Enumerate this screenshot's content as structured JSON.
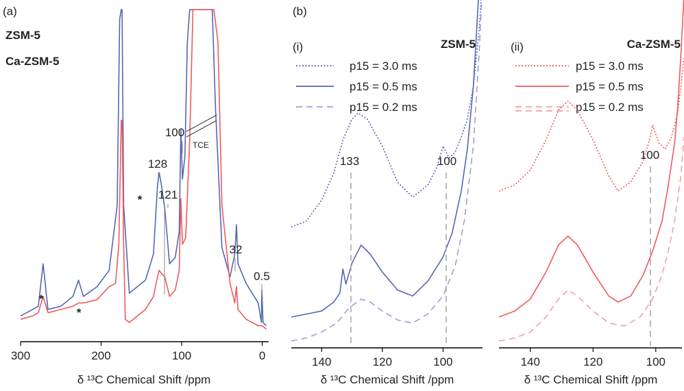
{
  "colors": {
    "zsm5": "#5565b5",
    "ca_zsm5": "#ee5a5a",
    "axis": "#000000",
    "guide": "#aaaaaa"
  },
  "chart_data": [
    {
      "type": "line",
      "panel_label": "(a)",
      "xlabel": "δ ¹³C Chemical Shift /ppm",
      "xlim": [
        300,
        -8
      ],
      "x_reversed": true,
      "xticks": [
        300,
        200,
        100,
        0
      ],
      "yticks_shown": false,
      "legend": [
        {
          "name": "ZSM-5",
          "color": "#5565b5"
        },
        {
          "name": "Ca-ZSM-5",
          "color": "#ee5a5a"
        }
      ],
      "annotations": [
        "*",
        "*",
        "*",
        "128",
        "121",
        "100",
        "TCE",
        "32",
        "0.5"
      ],
      "series": [
        {
          "name": "ZSM-5",
          "color": "#5565b5",
          "x": [
            300,
            285,
            278,
            272,
            266,
            250,
            235,
            228,
            222,
            205,
            190,
            180,
            177,
            175,
            174,
            172,
            165,
            145,
            135,
            130,
            128,
            125,
            121,
            115,
            108,
            103,
            101,
            99,
            96,
            93,
            90,
            85,
            80,
            70,
            62,
            58,
            50,
            40,
            34,
            32,
            30,
            20,
            5,
            1,
            0.5,
            -1,
            -5
          ],
          "y": [
            0.06,
            0.08,
            0.09,
            0.22,
            0.08,
            0.09,
            0.12,
            0.17,
            0.12,
            0.15,
            0.2,
            0.4,
            0.97,
            1.1,
            1.1,
            0.4,
            0.13,
            0.17,
            0.25,
            0.46,
            0.5,
            0.46,
            0.39,
            0.22,
            0.24,
            0.32,
            0.63,
            0.48,
            0.55,
            0.9,
            1.1,
            1.1,
            1.1,
            1.1,
            1.1,
            0.7,
            0.27,
            0.18,
            0.25,
            0.34,
            0.22,
            0.16,
            0.1,
            0.04,
            0.14,
            0.04,
            0.03
          ]
        },
        {
          "name": "Ca-ZSM-5",
          "color": "#ee5a5a",
          "x": [
            300,
            285,
            278,
            272,
            266,
            250,
            235,
            228,
            222,
            205,
            190,
            182,
            178,
            175,
            174,
            172,
            170,
            165,
            145,
            135,
            130,
            128,
            125,
            121,
            115,
            108,
            103,
            101,
            99,
            95,
            90,
            86,
            80,
            70,
            60,
            55,
            50,
            40,
            34,
            32,
            30,
            20,
            5,
            0,
            -5
          ],
          "y": [
            0.05,
            0.06,
            0.07,
            0.12,
            0.07,
            0.08,
            0.09,
            0.1,
            0.1,
            0.11,
            0.15,
            0.16,
            0.28,
            0.66,
            0.66,
            0.28,
            0.05,
            0.04,
            0.08,
            0.12,
            0.18,
            0.2,
            0.19,
            0.18,
            0.12,
            0.14,
            0.2,
            0.42,
            0.28,
            0.3,
            0.6,
            1.1,
            1.1,
            1.1,
            1.1,
            0.9,
            0.4,
            0.16,
            0.1,
            0.15,
            0.08,
            0.05,
            0.03,
            0.03,
            0.02
          ]
        }
      ]
    },
    {
      "type": "line",
      "panel_label": "(b)",
      "subpanel_label": "(i)",
      "sample": "ZSM-5",
      "xlabel": "δ ¹³C Chemical Shift /ppm",
      "xlim": [
        150,
        87
      ],
      "x_reversed": true,
      "xticks": [
        140,
        120,
        100
      ],
      "yticks_shown": false,
      "annotations": [
        "133",
        "100"
      ],
      "series": [
        {
          "name": "p15 = 3.0 ms",
          "color": "#5565b5",
          "style": "dotted",
          "x": [
            150,
            145,
            140,
            136,
            133,
            130,
            128,
            125,
            120,
            115,
            110,
            105,
            102,
            100,
            98,
            96,
            94,
            92,
            90,
            88,
            87
          ],
          "y": [
            0.38,
            0.4,
            0.47,
            0.56,
            0.67,
            0.74,
            0.76,
            0.74,
            0.65,
            0.53,
            0.48,
            0.52,
            0.58,
            0.65,
            0.61,
            0.63,
            0.68,
            0.74,
            0.85,
            1.05,
            1.22
          ]
        },
        {
          "name": "p15 = 0.5 ms",
          "color": "#5565b5",
          "style": "solid",
          "x": [
            150,
            145,
            140,
            136,
            134,
            133,
            132,
            130,
            127,
            124,
            120,
            115,
            110,
            105,
            100,
            97,
            94,
            92,
            90,
            88,
            87
          ],
          "y": [
            0.08,
            0.09,
            0.1,
            0.13,
            0.16,
            0.24,
            0.19,
            0.26,
            0.32,
            0.29,
            0.23,
            0.17,
            0.15,
            0.2,
            0.28,
            0.36,
            0.5,
            0.64,
            0.85,
            1.2,
            1.45
          ]
        },
        {
          "name": "p15 = 0.2 ms",
          "color": "#9aa0d8",
          "style": "dashed",
          "x": [
            150,
            145,
            140,
            135,
            131,
            127,
            124,
            120,
            115,
            110,
            105,
            100,
            96,
            93,
            90,
            88,
            87
          ],
          "y": [
            0.0,
            0.01,
            0.03,
            0.06,
            0.11,
            0.14,
            0.13,
            0.1,
            0.07,
            0.06,
            0.09,
            0.15,
            0.25,
            0.4,
            0.65,
            0.98,
            1.2
          ]
        }
      ]
    },
    {
      "type": "line",
      "subpanel_label": "(ii)",
      "sample": "Ca-ZSM-5",
      "xlabel": "δ ¹³C Chemical Shift /ppm",
      "xlim": [
        150,
        91
      ],
      "x_reversed": true,
      "xticks": [
        140,
        120,
        100
      ],
      "yticks_shown": false,
      "annotations": [
        "100"
      ],
      "series": [
        {
          "name": "p15 = 3.0 ms",
          "color": "#ee5a5a",
          "style": "dotted",
          "x": [
            150,
            145,
            140,
            135,
            131,
            128,
            125,
            120,
            115,
            112,
            108,
            104,
            102,
            101,
            99,
            97,
            95,
            93,
            92,
            91
          ],
          "y": [
            0.5,
            0.52,
            0.57,
            0.67,
            0.77,
            0.8,
            0.77,
            0.67,
            0.55,
            0.5,
            0.53,
            0.6,
            0.67,
            0.72,
            0.66,
            0.64,
            0.68,
            0.76,
            0.85,
            0.95
          ]
        },
        {
          "name": "p15 = 0.5 ms",
          "color": "#ee5a5a",
          "style": "solid",
          "x": [
            150,
            145,
            140,
            135,
            131,
            128,
            125,
            120,
            115,
            112,
            108,
            104,
            101,
            98,
            96,
            94,
            93,
            92,
            91
          ],
          "y": [
            0.08,
            0.1,
            0.14,
            0.23,
            0.32,
            0.35,
            0.32,
            0.23,
            0.15,
            0.13,
            0.15,
            0.22,
            0.3,
            0.4,
            0.52,
            0.66,
            0.78,
            0.95,
            1.15
          ]
        },
        {
          "name": "p15 = 0.2 ms",
          "color": "#f2a0a0",
          "style": "dashed",
          "x": [
            150,
            145,
            140,
            135,
            131,
            128,
            125,
            120,
            115,
            110,
            105,
            101,
            98,
            96,
            94,
            92,
            91
          ],
          "y": [
            0.0,
            0.01,
            0.03,
            0.08,
            0.14,
            0.17,
            0.15,
            0.1,
            0.06,
            0.05,
            0.08,
            0.14,
            0.22,
            0.3,
            0.4,
            0.55,
            0.68
          ]
        }
      ]
    }
  ]
}
